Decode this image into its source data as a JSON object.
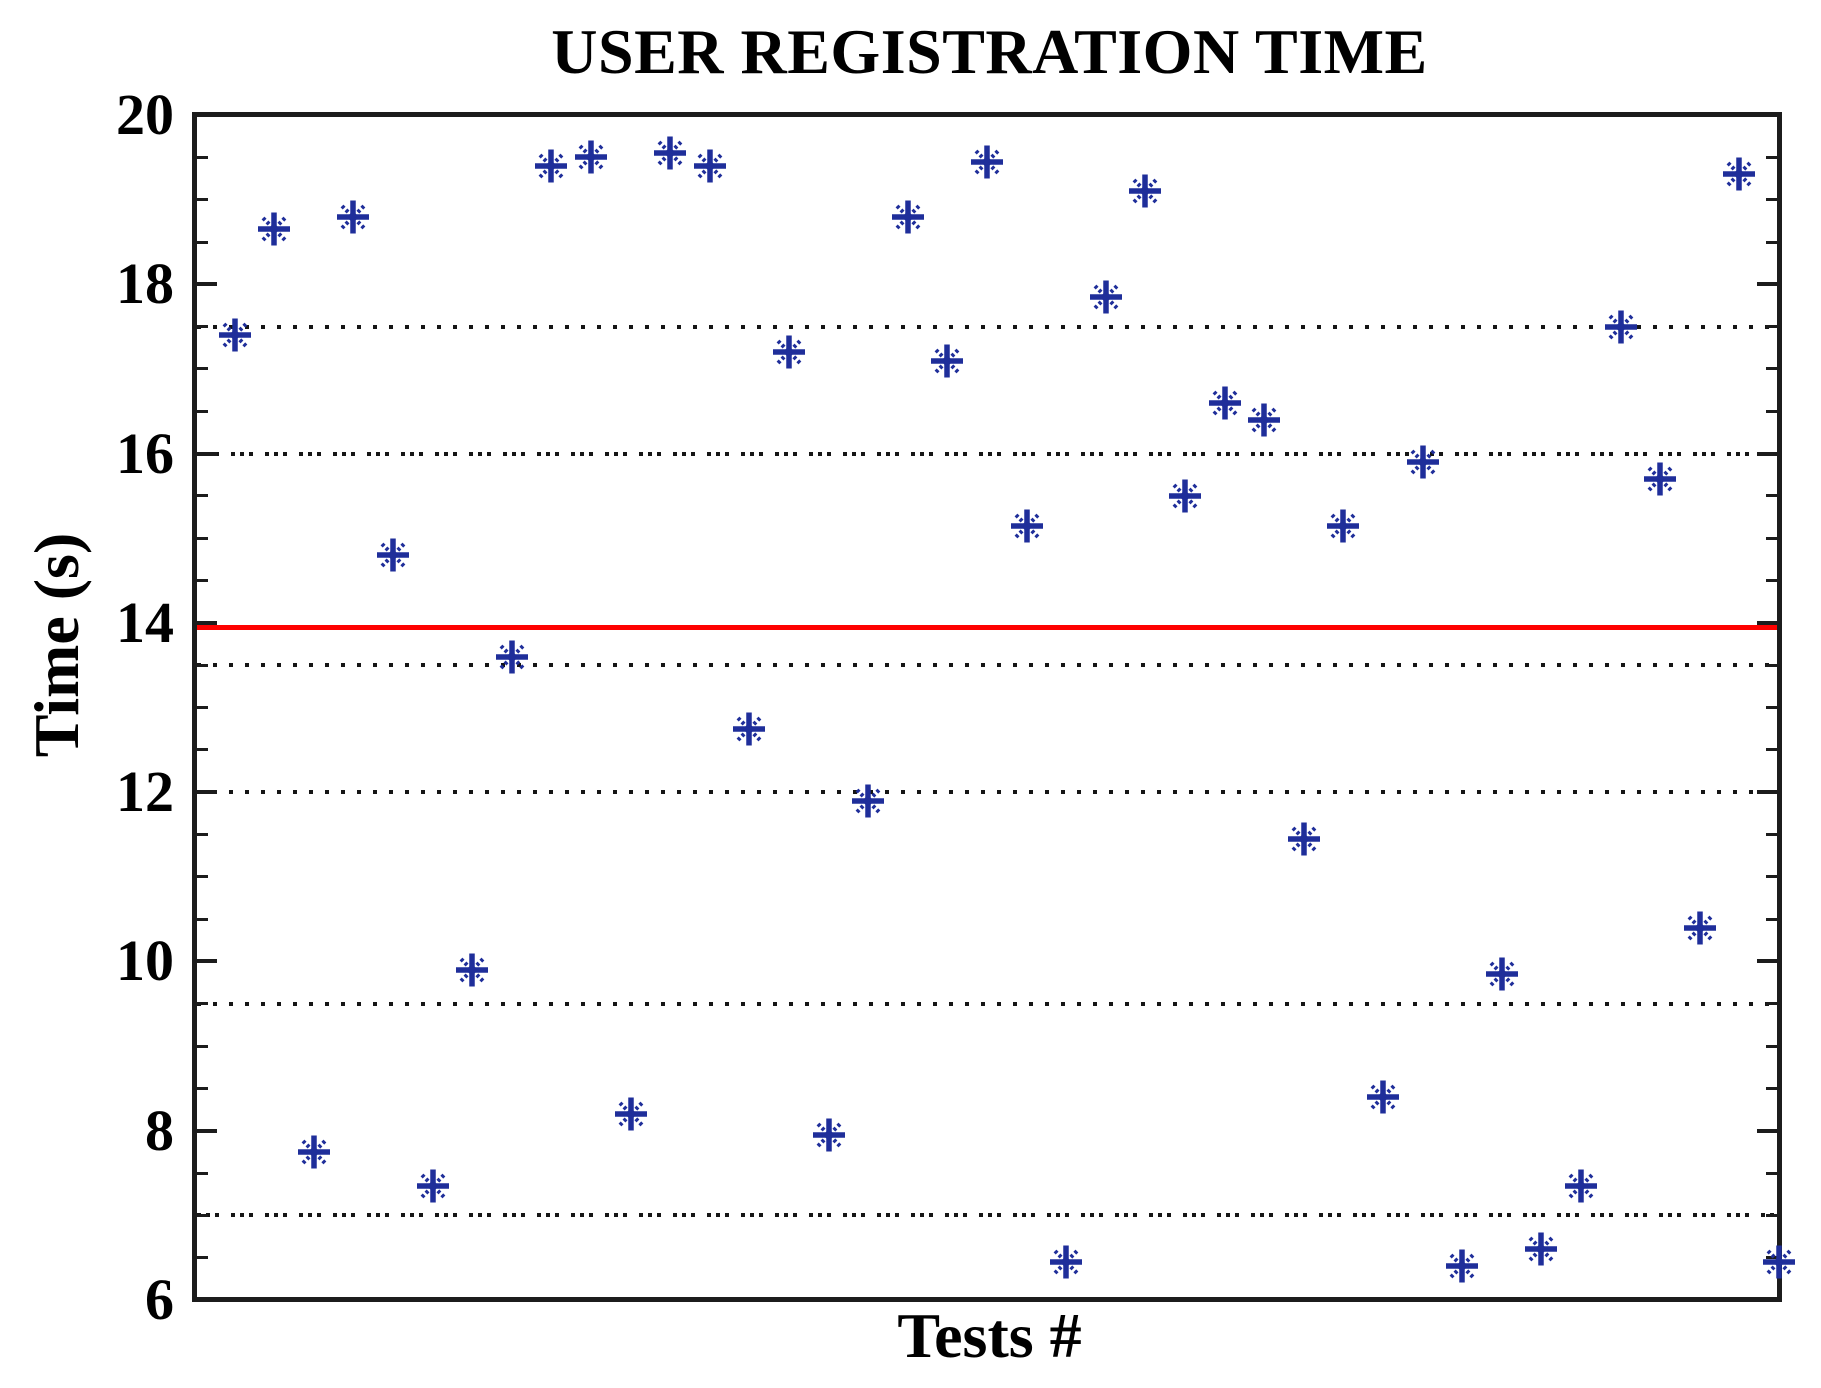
{
  "chart_data": {
    "type": "scatter",
    "title": "USER REGISTRATION TIME",
    "xlabel": "Tests #",
    "ylabel": "Time (s)",
    "xlim": [
      0,
      40
    ],
    "ylim": [
      6,
      20
    ],
    "y_major_ticks": [
      20,
      18,
      16,
      14,
      12,
      10,
      8,
      6
    ],
    "y_minor_tick_step": 0.5,
    "grid_on": true,
    "dotted_gridlines_y": [
      17.5,
      16,
      13.5,
      12,
      9.5,
      7
    ],
    "grid_color": "#151515",
    "reference_line": {
      "y": 13.95,
      "color": "#fe0100",
      "style": "solid"
    },
    "marker": "asterisk",
    "marker_color": "#1f2e9a",
    "axis_color": "#1c1c1c",
    "x": [
      1,
      2,
      3,
      4,
      5,
      6,
      7,
      8,
      9,
      10,
      11,
      12,
      13,
      14,
      15,
      16,
      17,
      18,
      19,
      20,
      21,
      22,
      23,
      24,
      25,
      26,
      27,
      28,
      29,
      30,
      31,
      32,
      33,
      34,
      35,
      36,
      37,
      38,
      39,
      40
    ],
    "y": [
      17.4,
      18.65,
      7.75,
      18.8,
      14.8,
      7.35,
      9.9,
      13.6,
      19.4,
      19.5,
      8.2,
      19.55,
      19.4,
      12.75,
      17.2,
      7.95,
      11.9,
      18.8,
      17.1,
      19.45,
      15.15,
      6.45,
      17.85,
      19.1,
      15.5,
      16.6,
      16.4,
      11.45,
      15.15,
      8.4,
      15.9,
      6.4,
      9.85,
      6.6,
      7.35,
      17.5,
      15.7,
      10.4,
      19.3,
      6.45
    ]
  }
}
